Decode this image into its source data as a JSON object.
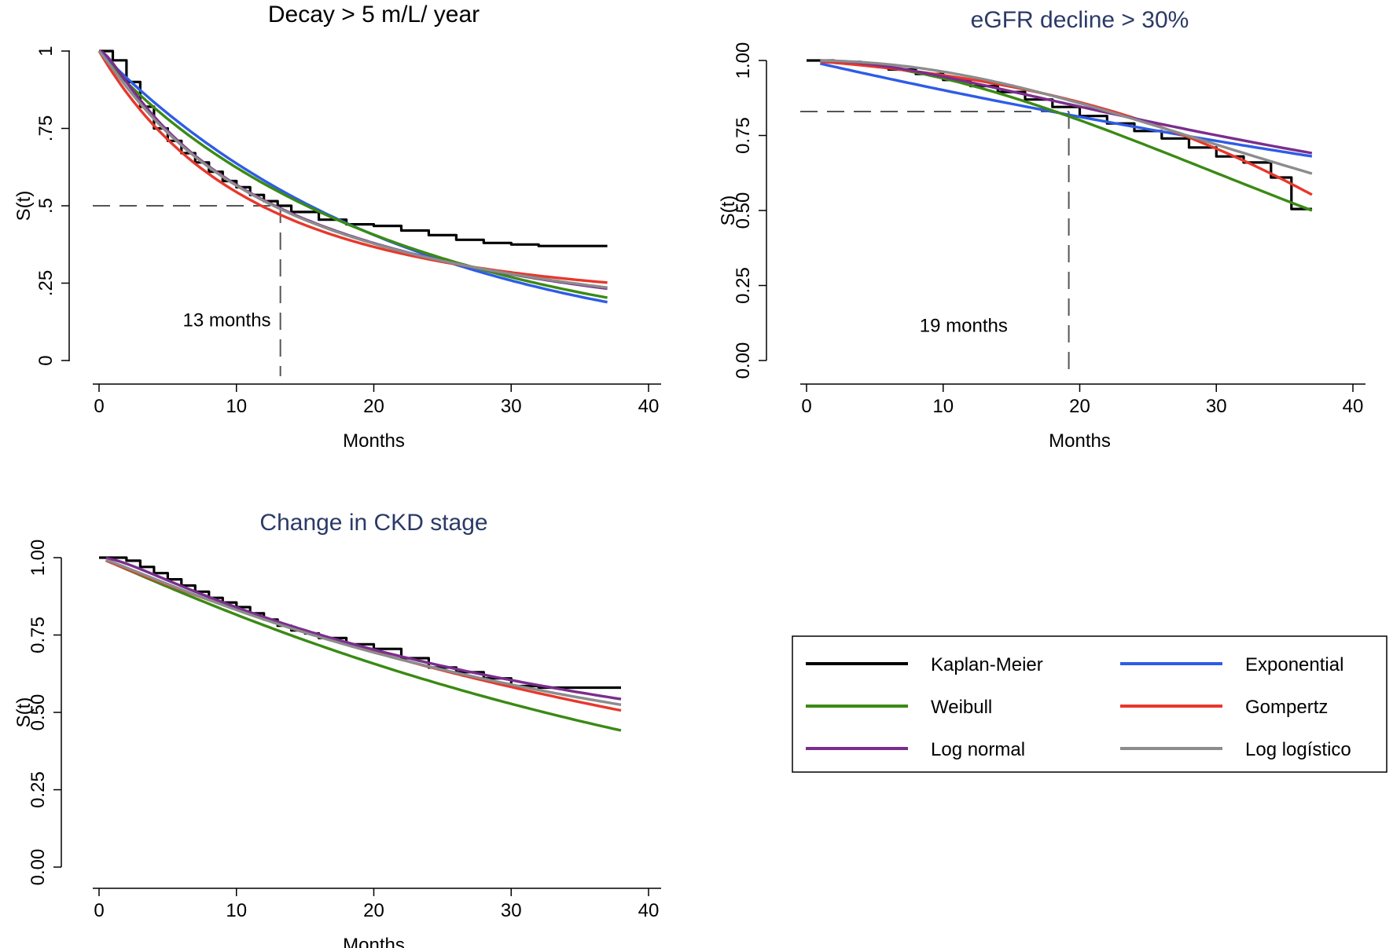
{
  "chart_data": [
    {
      "type": "line",
      "title": "Decay > 5 m/L/ year",
      "title_color": "#000000",
      "xlabel": "Months",
      "ylabel": "S(t)",
      "xlim": [
        0,
        40
      ],
      "ylim": [
        0,
        1
      ],
      "xticks": [
        0,
        10,
        20,
        30,
        40
      ],
      "xtick_labels": [
        "0",
        "10",
        "20",
        "30",
        "40"
      ],
      "yticks": [
        0,
        0.25,
        0.5,
        0.75,
        1
      ],
      "ytick_labels": [
        "0",
        ".25",
        ".5",
        ".75",
        "1"
      ],
      "reference": {
        "x": 13.2,
        "y": 0.5,
        "label": "13 months",
        "label_at": [
          9.3,
          0.11
        ]
      },
      "series": [
        {
          "name": "Kaplan-Meier",
          "step": true,
          "x": [
            0,
            1,
            2,
            3,
            4,
            5,
            6,
            7,
            8,
            9,
            10,
            11,
            12,
            13,
            14,
            16,
            18,
            20,
            22,
            24,
            26,
            28,
            30,
            32,
            34,
            37
          ],
          "values": [
            1,
            0.97,
            0.9,
            0.82,
            0.75,
            0.71,
            0.67,
            0.64,
            0.61,
            0.58,
            0.56,
            0.535,
            0.515,
            0.5,
            0.48,
            0.455,
            0.44,
            0.435,
            0.42,
            0.405,
            0.39,
            0.38,
            0.375,
            0.37,
            0.37,
            0.37
          ]
        },
        {
          "name": "Exponential",
          "model": "exp",
          "params": {
            "lambda": 0.0451
          },
          "x0": 0,
          "x1": 37
        },
        {
          "name": "Weibull",
          "model": "weibull",
          "params": {
            "lambda": 0.0555,
            "p": 0.93
          },
          "x0": 0,
          "x1": 37
        },
        {
          "name": "Gompertz",
          "model": "gompertz",
          "params": {
            "a": 0.075,
            "g": -0.0435
          },
          "x0": 0,
          "x1": 37
        },
        {
          "name": "Log normal",
          "model": "lognormal",
          "params": {
            "mu": 2.55,
            "sigma": 1.45
          },
          "x0": 0,
          "x1": 37
        },
        {
          "name": "Log logístico",
          "model": "loglogistic",
          "params": {
            "alpha": 12.7,
            "beta": 1.1
          },
          "x0": 0,
          "x1": 37
        }
      ]
    },
    {
      "type": "line",
      "title": "eGFR decline > 30%",
      "title_color": "#2b3a67",
      "xlabel": "Months",
      "ylabel": "S(t)",
      "xlim": [
        0,
        40
      ],
      "ylim": [
        0,
        1
      ],
      "xticks": [
        0,
        10,
        20,
        30,
        40
      ],
      "xtick_labels": [
        "0",
        "10",
        "20",
        "30",
        "40"
      ],
      "yticks": [
        0,
        0.25,
        0.5,
        0.75,
        1
      ],
      "ytick_labels": [
        "0.00",
        "0.25",
        "0.50",
        "0.75",
        "1.00"
      ],
      "reference": {
        "x": 19.2,
        "y": 0.83,
        "label": "19 months",
        "label_at": [
          11.5,
          0.095
        ]
      },
      "series": [
        {
          "name": "Kaplan-Meier",
          "step": true,
          "x": [
            0,
            2,
            4,
            6,
            8,
            10,
            12,
            14,
            16,
            18,
            20,
            22,
            24,
            26,
            28,
            30,
            32,
            34,
            35.5,
            37
          ],
          "values": [
            1,
            0.995,
            0.985,
            0.97,
            0.955,
            0.935,
            0.915,
            0.895,
            0.87,
            0.845,
            0.815,
            0.79,
            0.765,
            0.74,
            0.71,
            0.68,
            0.66,
            0.61,
            0.505,
            0.505
          ]
        },
        {
          "name": "Exponential",
          "model": "exp",
          "params": {
            "lambda": 0.0104
          },
          "x0": 1,
          "x1": 37
        },
        {
          "name": "Weibull",
          "model": "weibull",
          "params": {
            "lambda": 0.00087,
            "p": 1.85
          },
          "x0": 1,
          "x1": 37
        },
        {
          "name": "Gompertz",
          "model": "gompertz",
          "params": {
            "a": 0.0035,
            "g": 0.0685
          },
          "x0": 1,
          "x1": 37
        },
        {
          "name": "Log normal",
          "model": "lognormal",
          "params": {
            "mu": 4.2,
            "sigma": 1.18
          },
          "x0": 1,
          "x1": 37
        },
        {
          "name": "Log logístico",
          "model": "loglogistic",
          "params": {
            "alpha": 47,
            "beta": 2.1
          },
          "x0": 1,
          "x1": 37
        }
      ]
    },
    {
      "type": "line",
      "title": "Change in CKD stage",
      "title_color": "#2b3a67",
      "xlabel": "Months",
      "ylabel": "S(t)",
      "xlim": [
        0,
        40
      ],
      "ylim": [
        0,
        1
      ],
      "xticks": [
        0,
        10,
        20,
        30,
        40
      ],
      "xtick_labels": [
        "0",
        "10",
        "20",
        "30",
        "40"
      ],
      "yticks": [
        0,
        0.25,
        0.5,
        0.75,
        1
      ],
      "ytick_labels": [
        "0.00",
        "0.25",
        "0.50",
        "0.75",
        "1.00"
      ],
      "series": [
        {
          "name": "Kaplan-Meier",
          "step": true,
          "x": [
            0,
            1,
            2,
            3,
            4,
            5,
            6,
            7,
            8,
            9,
            10,
            11,
            12,
            13,
            14,
            15,
            16,
            18,
            20,
            22,
            24,
            26,
            28,
            30,
            32,
            34,
            36,
            38
          ],
          "values": [
            1,
            1,
            0.99,
            0.97,
            0.95,
            0.93,
            0.91,
            0.89,
            0.87,
            0.855,
            0.84,
            0.82,
            0.8,
            0.78,
            0.765,
            0.755,
            0.74,
            0.72,
            0.705,
            0.675,
            0.645,
            0.63,
            0.61,
            0.585,
            0.58,
            0.58,
            0.58,
            0.58
          ]
        },
        {
          "name": "Weibull",
          "model": "weibull",
          "params": {
            "lambda": 0.0186,
            "p": 1.04
          },
          "x0": 0.5,
          "x1": 38
        },
        {
          "name": "Gompertz",
          "model": "gompertz",
          "params": {
            "a": 0.0185,
            "g": -0.0017
          },
          "x0": 0.5,
          "x1": 38
        },
        {
          "name": "Log normal",
          "model": "lognormal",
          "params": {
            "mu": 3.8,
            "sigma": 1.51
          },
          "x0": 0.5,
          "x1": 38
        },
        {
          "name": "Log logístico",
          "model": "loglogistic",
          "params": {
            "alpha": 41.5,
            "beta": 1.12
          },
          "x0": 0.5,
          "x1": 38
        }
      ]
    }
  ],
  "legend": {
    "items": [
      {
        "label": "Kaplan-Meier",
        "color": "#000000"
      },
      {
        "label": "Exponential",
        "color": "#2e5ce6"
      },
      {
        "label": "Weibull",
        "color": "#3a8a14"
      },
      {
        "label": "Gompertz",
        "color": "#e8372c"
      },
      {
        "label": "Log normal",
        "color": "#7b2d8e"
      },
      {
        "label": "Log logístico",
        "color": "#8c8c8c"
      }
    ]
  },
  "colors": {
    "Kaplan-Meier": "#000000",
    "Exponential": "#2e5ce6",
    "Weibull": "#3a8a14",
    "Gompertz": "#e8372c",
    "Log normal": "#7b2d8e",
    "Log logístico": "#8c8c8c"
  }
}
